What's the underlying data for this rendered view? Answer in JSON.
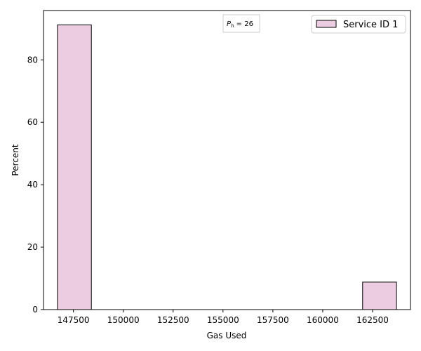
{
  "chart_data": {
    "type": "bar",
    "xlabel": "Gas Used",
    "ylabel": "Percent",
    "xlim": [
      146000,
      164400
    ],
    "ylim": [
      0,
      95.8
    ],
    "xticks": [
      147500,
      150000,
      152500,
      155000,
      157500,
      160000,
      162500
    ],
    "yticks": [
      0,
      20,
      40,
      60,
      80
    ],
    "bin_width": 1700,
    "series": [
      {
        "name": "Service ID 1",
        "color": "#ebcce0",
        "edge_color": "#000000",
        "bins": [
          {
            "x_start": 146700,
            "x_end": 148400,
            "value": 91.2
          },
          {
            "x_start": 162000,
            "x_end": 163700,
            "value": 8.8
          }
        ]
      }
    ],
    "legend": {
      "placement": "top-right"
    },
    "annotation": {
      "prefix": "P",
      "subscript": "h",
      "suffix": " = 26",
      "placement": "top-center"
    },
    "grid": false
  }
}
